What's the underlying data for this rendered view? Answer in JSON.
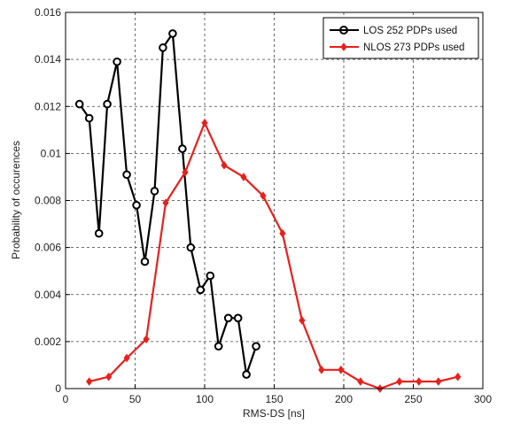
{
  "chart_data": {
    "type": "line",
    "xlabel": "RMS-DS [ns]",
    "ylabel": "Probability of occurences",
    "xlim": [
      0,
      300
    ],
    "ylim": [
      0,
      0.016
    ],
    "x_ticks": [
      "0",
      "50",
      "100",
      "150",
      "200",
      "250",
      "300"
    ],
    "y_ticks": [
      "0",
      "0.002",
      "0.004",
      "0.006",
      "0.008",
      "0.01",
      "0.012",
      "0.014",
      "0.016"
    ],
    "grid": true,
    "legend_position": "top-right",
    "series": [
      {
        "name": "LOS 252 PDPs used",
        "color": "#000000",
        "marker": "circle",
        "x": [
          10,
          17,
          24,
          30,
          37,
          44,
          51,
          57,
          64,
          70,
          77,
          84,
          90,
          97,
          104,
          110,
          117,
          124,
          130,
          137
        ],
        "y": [
          0.0121,
          0.0115,
          0.0066,
          0.0121,
          0.0139,
          0.0091,
          0.0078,
          0.0054,
          0.0084,
          0.0145,
          0.0151,
          0.0102,
          0.006,
          0.0042,
          0.0048,
          0.0018,
          0.003,
          0.003,
          0.0006,
          0.0018
        ]
      },
      {
        "name": "NLOS 273 PDPs used",
        "color": "#e8201c",
        "marker": "diamond",
        "x": [
          17,
          31,
          44,
          58,
          72,
          86,
          100,
          114,
          128,
          142,
          156,
          170,
          184,
          198,
          212,
          226,
          240,
          254,
          268,
          282
        ],
        "y": [
          0.0003,
          0.0005,
          0.0013,
          0.0021,
          0.0079,
          0.0092,
          0.0113,
          0.0095,
          0.009,
          0.0082,
          0.0066,
          0.0029,
          0.0008,
          0.0008,
          0.0003,
          0.0,
          0.0003,
          0.0003,
          0.0003,
          0.0005
        ]
      }
    ]
  }
}
